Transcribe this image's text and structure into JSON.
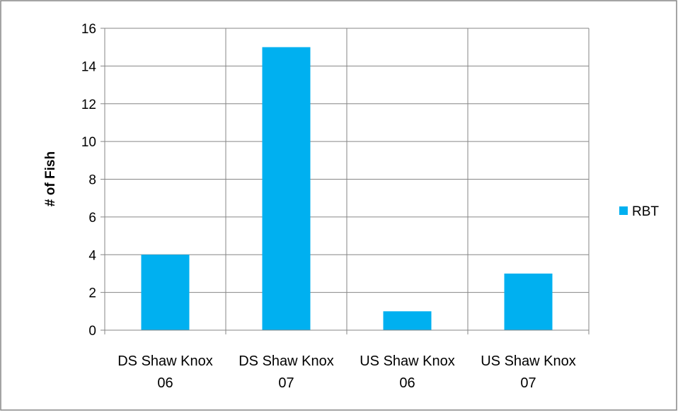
{
  "chart_data": {
    "type": "bar",
    "title": "",
    "xlabel": "",
    "ylabel": "# of Fish",
    "categories": [
      [
        "DS Shaw Knox",
        "06"
      ],
      [
        "DS Shaw Knox",
        "07"
      ],
      [
        "US Shaw Knox",
        "06"
      ],
      [
        "US Shaw Knox",
        "07"
      ]
    ],
    "series": [
      {
        "name": "RBT",
        "values": [
          4,
          15,
          1,
          3
        ],
        "color": "#00b0f0"
      }
    ],
    "ylim": [
      0,
      16
    ],
    "yticks": [
      "0",
      "2",
      "4",
      "6",
      "8",
      "10",
      "12",
      "14",
      "16"
    ],
    "grid": true,
    "legend_position": "right",
    "colors": {
      "grid": "#868686",
      "border": "#868686",
      "bar": "#00b0f0"
    }
  }
}
